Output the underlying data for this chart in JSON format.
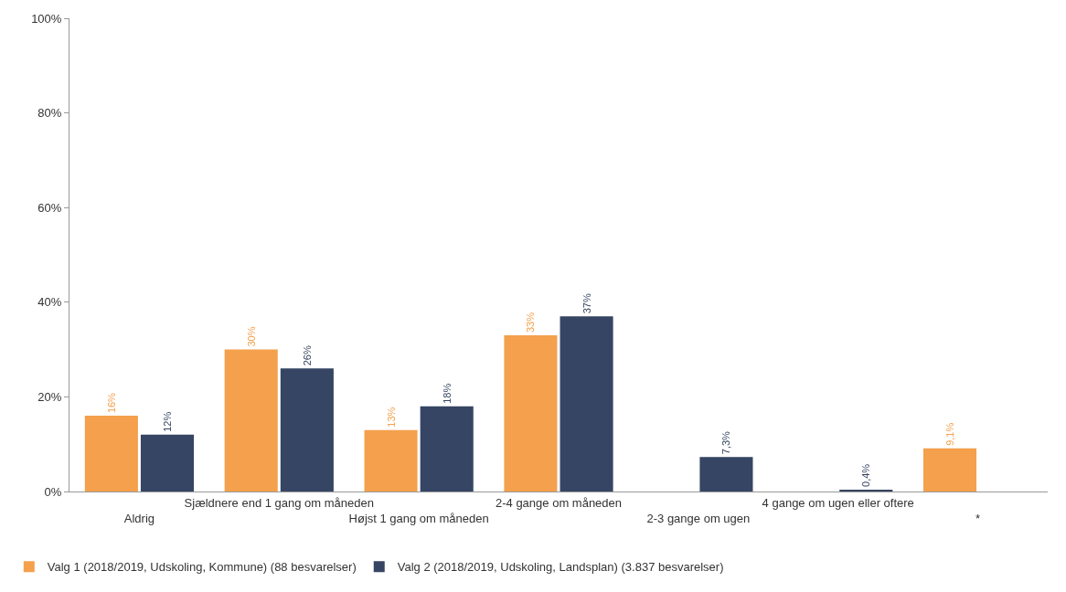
{
  "chart_data": {
    "type": "bar",
    "categories": [
      "Aldrig",
      "Sjældnere end 1 gang om måneden",
      "Højst 1 gang om måneden",
      "2-4 gange om måneden",
      "2-3 gange om ugen",
      "4 gange om ugen eller oftere",
      "*"
    ],
    "series": [
      {
        "name": "Valg 1 (2018/2019, Udskoling, Kommune) (88 besvarelser)",
        "color": "#f4a04c",
        "values": [
          16,
          30,
          13,
          33,
          0,
          0,
          9.1
        ],
        "value_labels": [
          "16%",
          "30%",
          "13%",
          "33%",
          null,
          null,
          "9,1%"
        ]
      },
      {
        "name": "Valg 2 (2018/2019, Udskoling, Landsplan) (3.837 besvarelser)",
        "color": "#364563",
        "values": [
          12,
          26,
          18,
          37,
          7.3,
          0.4,
          0
        ],
        "value_labels": [
          "12%",
          "26%",
          "18%",
          "37%",
          "7,3%",
          "0,4%",
          null
        ]
      }
    ],
    "ylim": [
      0,
      100
    ],
    "yticks": [
      {
        "value": 0,
        "label": "0%"
      },
      {
        "value": 20,
        "label": "20%"
      },
      {
        "value": 40,
        "label": "40%"
      },
      {
        "value": 60,
        "label": "60%"
      },
      {
        "value": 80,
        "label": "80%"
      },
      {
        "value": 100,
        "label": "100%"
      }
    ],
    "legend": "bottom left"
  }
}
